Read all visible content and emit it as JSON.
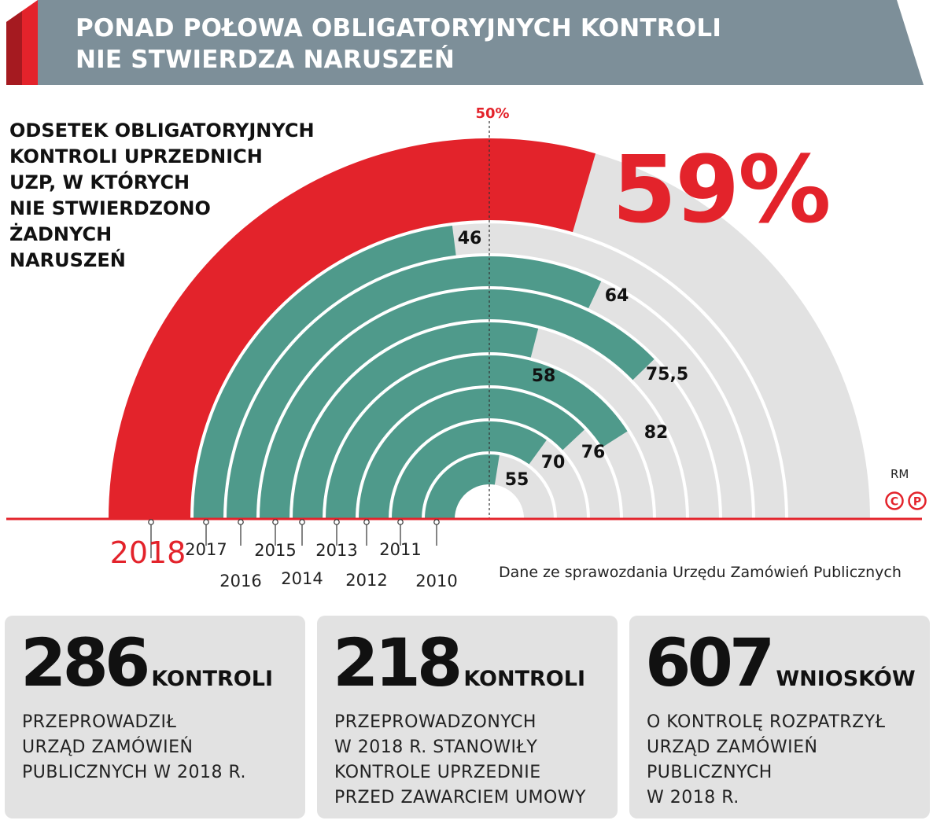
{
  "header": {
    "title_line1": "PONAD POŁOWA OBLIGATORYJNYCH KONTROLI",
    "title_line2": "NIE STWIERDZA NARUSZEŃ"
  },
  "chart": {
    "subtitle_lines": [
      "ODSETEK OBLIGATORYJNYCH",
      "KONTROLI UPRZEDNICH",
      "UZP, W KTÓRYCH",
      "NIE STWIERDZONO",
      "ŻADNYCH",
      "NARUSZEŃ"
    ],
    "reference_label": "50%",
    "highlight_value": "59%",
    "source": "Dane ze sprawozdania Urzędu Zamówień Publicznych",
    "author": "RM",
    "logo_marks": "©℗"
  },
  "chart_data": {
    "type": "radial-bar",
    "title": "ODSETEK OBLIGATORYJNYCH KONTROLI UPRZEDNICH UZP, W KTÓRYCH NIE STWIERDZONO ŻADNYCH NARUSZEŃ",
    "unit": "%",
    "scale": [
      0,
      100
    ],
    "reference_line": 50,
    "categories": [
      "2018",
      "2017",
      "2016",
      "2015",
      "2014",
      "2013",
      "2012",
      "2011",
      "2010"
    ],
    "values": [
      59,
      46,
      64,
      75.5,
      58,
      82,
      76,
      70,
      55
    ],
    "value_labels": [
      "59%",
      "46",
      "64",
      "75,5",
      "58",
      "82",
      "76",
      "70",
      "55"
    ],
    "highlight_category": "2018"
  },
  "colors": {
    "highlight": "#e3232b",
    "bars": "#4f9a8b",
    "track": "#e2e2e2",
    "header_band": "#7d8f99",
    "header_accent": "#e3232b"
  },
  "stats": [
    {
      "number": "286",
      "unit": "KONTROLI",
      "lines": [
        "PRZEPROWADZIŁ",
        "URZĄD ZAMÓWIEŃ",
        "PUBLICZNYCH W 2018 R."
      ]
    },
    {
      "number": "218",
      "unit": "KONTROLI",
      "lines": [
        "PRZEPROWADZONYCH",
        "W 2018 R. STANOWIŁY",
        "KONTROLE UPRZEDNIE",
        "PRZED ZAWARCIEM UMOWY"
      ]
    },
    {
      "number": "607",
      "unit": "WNIOSKÓW",
      "lines": [
        "O KONTROLĘ ROZPATRZYŁ",
        "URZĄD ZAMÓWIEŃ",
        "PUBLICZNYCH",
        "W 2018 R."
      ]
    }
  ]
}
